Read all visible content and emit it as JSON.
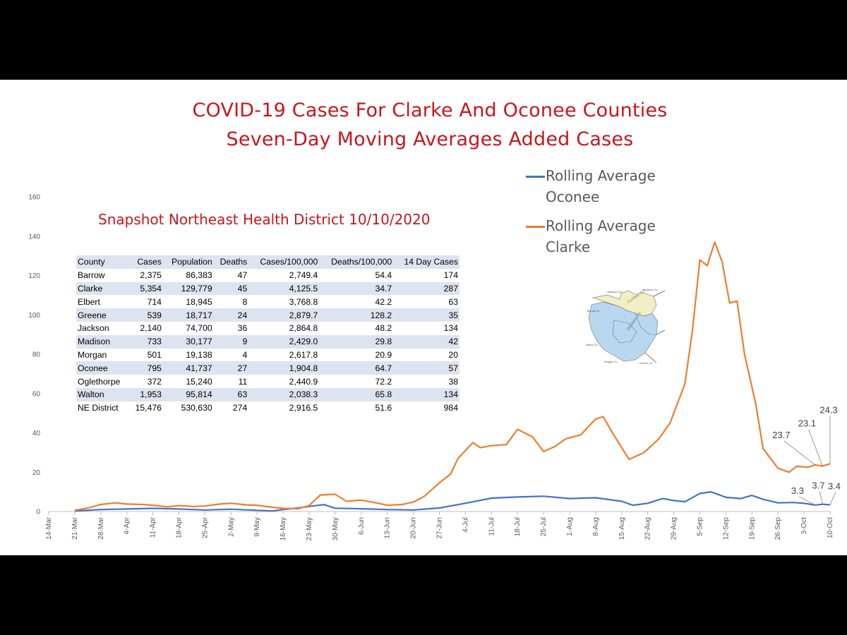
{
  "chart_data": {
    "type": "line",
    "title": "COVID-19 Cases For Clarke And Oconee Counties",
    "subtitle": "Seven-Day Moving Averages Added Cases",
    "ylim": [
      0,
      160
    ],
    "yticks": [
      0,
      20,
      40,
      60,
      80,
      100,
      120,
      140,
      160
    ],
    "x_start": "2020-03-14",
    "x_end": "2020-10-10",
    "x_ticks": [
      "14-Mar",
      "21-Mar",
      "28-Mar",
      "4-Apr",
      "11-Apr",
      "18-Apr",
      "25-Apr",
      "2-May",
      "9-May",
      "16-May",
      "23-May",
      "30-May",
      "6-Jun",
      "13-Jun",
      "20-Jun",
      "27-Jun",
      "4-Jul",
      "11-Jul",
      "18-Jul",
      "25-Jul",
      "1-Aug",
      "8-Aug",
      "15-Aug",
      "22-Aug",
      "29-Aug",
      "5-Sep",
      "12-Sep",
      "19-Sep",
      "26-Sep",
      "3-Oct",
      "10-Oct"
    ],
    "legend_position": "top-right",
    "grid": false,
    "series": [
      {
        "name": "Rolling Average Oconee",
        "color": "#4472c4",
        "points": [
          [
            "2020-03-21",
            0.3
          ],
          [
            "2020-03-28",
            1.0
          ],
          [
            "2020-04-04",
            1.3
          ],
          [
            "2020-04-11",
            1.6
          ],
          [
            "2020-04-18",
            1.3
          ],
          [
            "2020-04-25",
            0.8
          ],
          [
            "2020-05-02",
            1.2
          ],
          [
            "2020-05-09",
            0.6
          ],
          [
            "2020-05-13",
            0.3
          ],
          [
            "2020-05-16",
            1.0
          ],
          [
            "2020-05-20",
            1.8
          ],
          [
            "2020-05-23",
            2.6
          ],
          [
            "2020-05-27",
            3.5
          ],
          [
            "2020-05-30",
            1.7
          ],
          [
            "2020-06-06",
            1.4
          ],
          [
            "2020-06-13",
            1.0
          ],
          [
            "2020-06-20",
            0.8
          ],
          [
            "2020-06-27",
            1.8
          ],
          [
            "2020-07-04",
            4.2
          ],
          [
            "2020-07-11",
            6.8
          ],
          [
            "2020-07-18",
            7.4
          ],
          [
            "2020-07-25",
            7.8
          ],
          [
            "2020-08-01",
            6.6
          ],
          [
            "2020-08-08",
            7.0
          ],
          [
            "2020-08-15",
            5.2
          ],
          [
            "2020-08-18",
            3.2
          ],
          [
            "2020-08-22",
            4.2
          ],
          [
            "2020-08-26",
            6.6
          ],
          [
            "2020-08-29",
            5.6
          ],
          [
            "2020-09-01",
            5.0
          ],
          [
            "2020-09-05",
            9.2
          ],
          [
            "2020-09-08",
            10.0
          ],
          [
            "2020-09-12",
            7.2
          ],
          [
            "2020-09-16",
            6.6
          ],
          [
            "2020-09-19",
            8.2
          ],
          [
            "2020-09-22",
            6.2
          ],
          [
            "2020-09-26",
            4.4
          ],
          [
            "2020-09-30",
            4.6
          ],
          [
            "2020-10-03",
            4.2
          ],
          [
            "2020-10-06",
            3.3
          ],
          [
            "2020-10-08",
            3.7
          ],
          [
            "2020-10-10",
            3.4
          ]
        ]
      },
      {
        "name": "Rolling Average Clarke",
        "color": "#ed7d31",
        "points": [
          [
            "2020-03-21",
            0.6
          ],
          [
            "2020-03-25",
            2.0
          ],
          [
            "2020-03-28",
            3.6
          ],
          [
            "2020-04-01",
            4.4
          ],
          [
            "2020-04-04",
            3.8
          ],
          [
            "2020-04-08",
            3.6
          ],
          [
            "2020-04-11",
            3.2
          ],
          [
            "2020-04-15",
            2.4
          ],
          [
            "2020-04-18",
            3.0
          ],
          [
            "2020-04-22",
            2.6
          ],
          [
            "2020-04-25",
            2.8
          ],
          [
            "2020-04-29",
            3.8
          ],
          [
            "2020-05-02",
            4.2
          ],
          [
            "2020-05-06",
            3.4
          ],
          [
            "2020-05-09",
            3.2
          ],
          [
            "2020-05-13",
            2.2
          ],
          [
            "2020-05-16",
            1.6
          ],
          [
            "2020-05-20",
            1.4
          ],
          [
            "2020-05-23",
            3.0
          ],
          [
            "2020-05-26",
            8.4
          ],
          [
            "2020-05-30",
            8.8
          ],
          [
            "2020-06-02",
            5.2
          ],
          [
            "2020-06-06",
            5.8
          ],
          [
            "2020-06-10",
            4.4
          ],
          [
            "2020-06-13",
            3.2
          ],
          [
            "2020-06-17",
            3.6
          ],
          [
            "2020-06-20",
            4.8
          ],
          [
            "2020-06-23",
            7.8
          ],
          [
            "2020-06-27",
            14.6
          ],
          [
            "2020-06-30",
            19.0
          ],
          [
            "2020-07-02",
            27.0
          ],
          [
            "2020-07-06",
            35.0
          ],
          [
            "2020-07-08",
            32.5
          ],
          [
            "2020-07-11",
            33.5
          ],
          [
            "2020-07-15",
            34.0
          ],
          [
            "2020-07-18",
            41.8
          ],
          [
            "2020-07-22",
            38.0
          ],
          [
            "2020-07-25",
            30.5
          ],
          [
            "2020-07-28",
            33.0
          ],
          [
            "2020-07-31",
            37.0
          ],
          [
            "2020-08-04",
            39.0
          ],
          [
            "2020-08-08",
            47.0
          ],
          [
            "2020-08-10",
            48.3
          ],
          [
            "2020-08-13",
            38.5
          ],
          [
            "2020-08-17",
            26.5
          ],
          [
            "2020-08-21",
            30.0
          ],
          [
            "2020-08-25",
            37.0
          ],
          [
            "2020-08-28",
            45.0
          ],
          [
            "2020-09-01",
            65.0
          ],
          [
            "2020-09-03",
            92.0
          ],
          [
            "2020-09-05",
            128.0
          ],
          [
            "2020-09-07",
            125.0
          ],
          [
            "2020-09-09",
            137.0
          ],
          [
            "2020-09-11",
            127.0
          ],
          [
            "2020-09-13",
            106.0
          ],
          [
            "2020-09-15",
            107.0
          ],
          [
            "2020-09-17",
            80.0
          ],
          [
            "2020-09-20",
            55.0
          ],
          [
            "2020-09-22",
            32.0
          ],
          [
            "2020-09-26",
            22.0
          ],
          [
            "2020-09-29",
            20.0
          ],
          [
            "2020-10-01",
            23.0
          ],
          [
            "2020-10-04",
            22.5
          ],
          [
            "2020-10-06",
            23.7
          ],
          [
            "2020-10-08",
            23.1
          ],
          [
            "2020-10-10",
            24.3
          ]
        ]
      }
    ],
    "data_labels": [
      {
        "text": "24.3",
        "x": "2020-10-10",
        "y": 24.3
      },
      {
        "text": "23.1",
        "x": "2020-10-08",
        "y": 23.1
      },
      {
        "text": "23.7",
        "x": "2020-10-06",
        "y": 23.7
      },
      {
        "text": "3.3",
        "x": "2020-10-06",
        "y": 3.3
      },
      {
        "text": "3.7",
        "x": "2020-10-08",
        "y": 3.7
      },
      {
        "text": "3.4",
        "x": "2020-10-10",
        "y": 3.4
      }
    ]
  },
  "legend": {
    "oconee": {
      "line1": "Rolling Average",
      "line2": "Oconee",
      "color": "#4472c4"
    },
    "clarke": {
      "line1": "Rolling Average",
      "line2": "Clarke",
      "color": "#ed7d31"
    }
  },
  "snapshot": {
    "title": "Snapshot Northeast Health District 10/10/2020",
    "headers": [
      "County",
      "Cases",
      "Population",
      "Deaths",
      "Cases/100,000",
      "Deaths/100,000",
      "14 Day Cases"
    ],
    "rows": [
      [
        "Barrow",
        "2,375",
        "86,383",
        "47",
        "2,749.4",
        "54.4",
        "174"
      ],
      [
        "Clarke",
        "5,354",
        "129,779",
        "45",
        "4,125.5",
        "34.7",
        "287"
      ],
      [
        "Elbert",
        "714",
        "18,945",
        "8",
        "3,768.8",
        "42.2",
        "63"
      ],
      [
        "Greene",
        "539",
        "18,717",
        "24",
        "2,879.7",
        "128.2",
        "35"
      ],
      [
        "Jackson",
        "2,140",
        "74,700",
        "36",
        "2,864.8",
        "48.2",
        "134"
      ],
      [
        "Madison",
        "733",
        "30,177",
        "9",
        "2,429.0",
        "29.8",
        "42"
      ],
      [
        "Morgan",
        "501",
        "19,138",
        "4",
        "2,617.8",
        "20.9",
        "20"
      ],
      [
        "Oconee",
        "795",
        "41,737",
        "27",
        "1,904.8",
        "64.7",
        "57"
      ],
      [
        "Oglethorpe",
        "372",
        "15,240",
        "11",
        "2,440.9",
        "72.2",
        "38"
      ],
      [
        "Walton",
        "1,953",
        "95,814",
        "63",
        "2,038.3",
        "65.8",
        "134"
      ],
      [
        "NE District",
        "15,476",
        "530,630",
        "274",
        "2,916.5",
        "51.6",
        "984"
      ]
    ]
  },
  "map": {
    "labels": [
      "Jackson Co.",
      "Madison Co.",
      "Barrow Co.",
      "CLARKE CO.",
      "Walton Co.",
      "OCONEE CO.",
      "Morgan Co.",
      "Greene Co."
    ],
    "colors": {
      "clarke": "#f3eec6",
      "oconee": "#b9d7ef"
    }
  }
}
